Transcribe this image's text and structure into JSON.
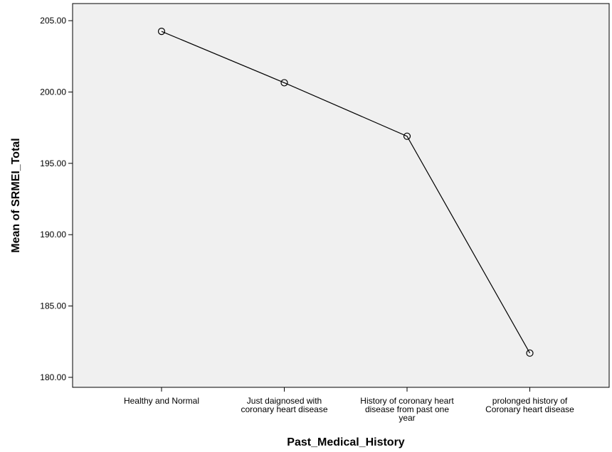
{
  "chart_data": {
    "type": "line",
    "xlabel": "Past_Medical_History",
    "ylabel": "Mean of SRMEI_Total",
    "categories": [
      [
        "Healthy and Normal"
      ],
      [
        "Just daignosed with",
        "coronary heart disease"
      ],
      [
        "History of coronary heart",
        "disease from past one",
        "year"
      ],
      [
        "prolonged history of",
        "Coronary heart disease"
      ]
    ],
    "values": [
      204.25,
      200.65,
      196.9,
      181.7
    ],
    "yticks": [
      "180.00",
      "185.00",
      "190.00",
      "195.00",
      "200.00",
      "205.00"
    ],
    "ylim": [
      179.3,
      206.2
    ],
    "grid": false,
    "marker": "open-circle",
    "colors": {
      "plot_bg": "#f0f0f0",
      "line": "#000000"
    }
  }
}
